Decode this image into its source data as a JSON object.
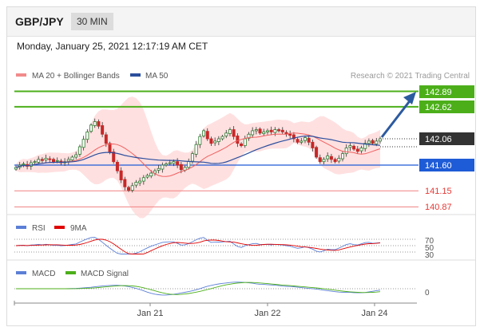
{
  "header": {
    "pair": "GBP/JPY",
    "timeframe": "30 MIN"
  },
  "date_line": "Monday, January 25, 2021 12:17:19 AM CET",
  "legend_main": {
    "bollinger": "MA 20 + Bollinger Bands",
    "ma50": "MA 50",
    "credit": "Research © 2021 Trading Central"
  },
  "legend_rsi": {
    "rsi": "RSI",
    "ma9": "9MA"
  },
  "legend_macd": {
    "macd": "MACD",
    "signal": "MACD Signal"
  },
  "colors": {
    "up": "#2e7d32",
    "down": "#c62828",
    "resistance": "#4caf1a",
    "support_blue": "#1e5bd6",
    "support_red": "#e53935",
    "arrow": "#2c5aa0",
    "bollinger_fill": "#ffd6d6",
    "ma50": "#2c4f9e"
  },
  "chart_data": {
    "type": "candlestick",
    "price_range": [
      140.7,
      143.1
    ],
    "levels": {
      "resistance": [
        "142.89",
        "142.62"
      ],
      "current": "142.06",
      "support": [
        "141.60",
        "141.15",
        "140.87"
      ]
    },
    "x_ticks": [
      "Jan 21",
      "Jan 22",
      "Jan 24"
    ],
    "rsi_levels": [
      "70",
      "50",
      "30"
    ],
    "macd_levels": [
      "0"
    ],
    "closes": [
      141.56,
      141.6,
      141.62,
      141.58,
      141.64,
      141.66,
      141.7,
      141.68,
      141.72,
      141.7,
      141.66,
      141.68,
      141.64,
      141.66,
      141.7,
      141.74,
      141.78,
      141.92,
      142.05,
      142.18,
      142.3,
      142.36,
      142.28,
      142.14,
      141.98,
      141.82,
      141.66,
      141.5,
      141.34,
      141.22,
      141.16,
      141.24,
      141.3,
      141.32,
      141.38,
      141.42,
      141.46,
      141.5,
      141.54,
      141.6,
      141.62,
      141.64,
      141.66,
      141.6,
      141.52,
      141.56,
      141.66,
      141.8,
      141.96,
      142.1,
      142.2,
      142.06,
      141.98,
      142.02,
      142.06,
      142.1,
      142.16,
      142.22,
      142.1,
      141.98,
      141.94,
      142.06,
      142.14,
      142.2,
      142.22,
      142.16,
      142.18,
      142.2,
      142.18,
      142.22,
      142.2,
      142.18,
      142.14,
      142.12,
      142.06,
      142.0,
      142.02,
      142.08,
      142.0,
      141.9,
      141.74,
      141.66,
      141.7,
      141.76,
      141.7,
      141.66,
      141.72,
      141.8,
      141.9,
      141.94,
      141.88,
      141.84,
      141.9,
      141.98,
      142.02,
      141.98,
      142.02,
      142.06
    ]
  }
}
